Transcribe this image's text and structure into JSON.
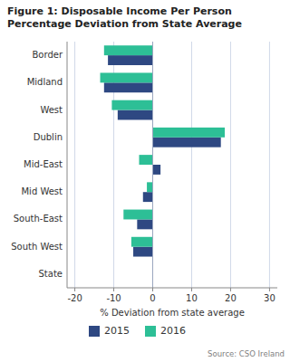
{
  "chart_data": {
    "type": "bar",
    "orientation": "horizontal",
    "title": "Figure 1: Disposable Income Per Person\nPercentage Deviation from State Average",
    "categories": [
      "Border",
      "Midland",
      "West",
      "Dublin",
      "Mid-East",
      "Mid West",
      "South-East",
      "South West",
      "State"
    ],
    "series": [
      {
        "name": "2015",
        "color": "#2e4882",
        "values": [
          -11.5,
          -12.5,
          -9.0,
          17.5,
          2.0,
          -2.5,
          -4.0,
          -5.0,
          0.0
        ]
      },
      {
        "name": "2016",
        "color": "#2dbf96",
        "values": [
          -12.5,
          -13.5,
          -10.5,
          18.5,
          -3.5,
          -1.5,
          -7.5,
          -5.5,
          0.0
        ]
      }
    ],
    "xlabel": "% Deviation from state average",
    "xlim": [
      -22,
      32
    ],
    "xticks": [
      -20,
      -10,
      0,
      10,
      20,
      30
    ],
    "grid": true,
    "legend": "bottom",
    "annotations": [
      "Source: CSO Ireland"
    ]
  }
}
